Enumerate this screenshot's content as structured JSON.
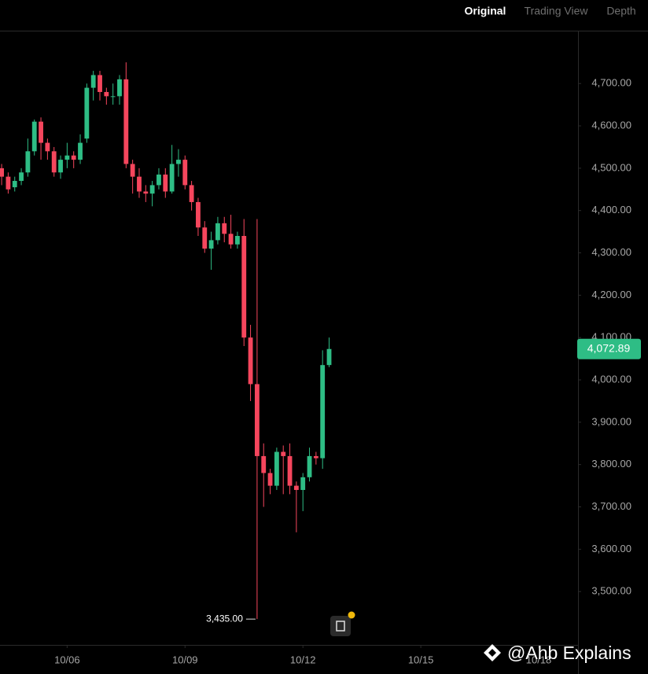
{
  "tabs": [
    "Original",
    "Trading View",
    "Depth"
  ],
  "watermark": "@Ahb Explains",
  "chart_data": {
    "type": "candlestick",
    "up_color": "#2ebd85",
    "down_color": "#f6465d",
    "open": [
      4500,
      4480,
      4455,
      4470,
      4490,
      4540,
      4610,
      4560,
      4540,
      4490,
      4520,
      4530,
      4520,
      4570,
      4690,
      4720,
      4680,
      4670,
      4670,
      4710,
      4510,
      4480,
      4445,
      4440,
      4460,
      4485,
      4445,
      4510,
      4520,
      4460,
      4420,
      4360,
      4310,
      4330,
      4370,
      4345,
      4320,
      4340,
      4100,
      3990,
      3820,
      3780,
      3750,
      3830,
      3820,
      3750,
      3740,
      3770,
      3820,
      3815,
      4035
    ],
    "high": [
      4510,
      4490,
      4480,
      4500,
      4570,
      4615,
      4620,
      4570,
      4550,
      4530,
      4560,
      4540,
      4580,
      4700,
      4730,
      4730,
      4690,
      4700,
      4720,
      4750,
      4520,
      4500,
      4460,
      4470,
      4500,
      4500,
      4555,
      4545,
      4530,
      4470,
      4430,
      4375,
      4350,
      4385,
      4385,
      4390,
      4350,
      4380,
      4130,
      4380,
      3850,
      3790,
      3840,
      3845,
      3850,
      3760,
      3780,
      3840,
      3830,
      4070,
      4100
    ],
    "low": [
      4460,
      4440,
      4445,
      4460,
      4480,
      4530,
      4520,
      4520,
      4480,
      4475,
      4500,
      4500,
      4510,
      4560,
      4660,
      4660,
      4650,
      4650,
      4650,
      4500,
      4440,
      4430,
      4420,
      4410,
      4450,
      4430,
      4440,
      4480,
      4450,
      4400,
      4340,
      4300,
      4260,
      4320,
      4325,
      4310,
      4310,
      4080,
      3950,
      3435,
      3700,
      3730,
      3740,
      3730,
      3730,
      3640,
      3690,
      3760,
      3800,
      3790,
      4030
    ],
    "close": [
      4480,
      4450,
      4470,
      4490,
      4540,
      4610,
      4560,
      4540,
      4490,
      4520,
      4530,
      4520,
      4560,
      4690,
      4720,
      4680,
      4670,
      4670,
      4710,
      4510,
      4480,
      4445,
      4440,
      4460,
      4485,
      4445,
      4510,
      4520,
      4460,
      4420,
      4360,
      4310,
      4330,
      4370,
      4345,
      4320,
      4340,
      4100,
      3990,
      3820,
      3780,
      3750,
      3830,
      3820,
      3750,
      3740,
      3770,
      3820,
      3815,
      4035,
      4073
    ],
    "xlim": [
      -0.25,
      88
    ],
    "xticks": [
      {
        "value": 10,
        "label": "10/06"
      },
      {
        "value": 28,
        "label": "10/09"
      },
      {
        "value": 46,
        "label": "10/12"
      },
      {
        "value": 64,
        "label": "10/15"
      },
      {
        "value": 82,
        "label": "10/18"
      }
    ],
    "ylim": [
      3374,
      4823
    ],
    "yticks": [
      {
        "value": 3500,
        "label": "3,500.00"
      },
      {
        "value": 3600,
        "label": "3,600.00"
      },
      {
        "value": 3700,
        "label": "3,700.00"
      },
      {
        "value": 3800,
        "label": "3,800.00"
      },
      {
        "value": 3900,
        "label": "3,900.00"
      },
      {
        "value": 4000,
        "label": "4,000.00"
      },
      {
        "value": 4100,
        "label": "4,100.00"
      },
      {
        "value": 4200,
        "label": "4,200.00"
      },
      {
        "value": 4300,
        "label": "4,300.00"
      },
      {
        "value": 4400,
        "label": "4,400.00"
      },
      {
        "value": 4500,
        "label": "4,500.00"
      },
      {
        "value": 4600,
        "label": "4,600.00"
      },
      {
        "value": 4700,
        "label": "4,700.00"
      }
    ],
    "last_price": {
      "value": 4072.89,
      "label": "4,072.89"
    },
    "low_marker": {
      "value": 3435,
      "label": "3,435.00"
    }
  }
}
